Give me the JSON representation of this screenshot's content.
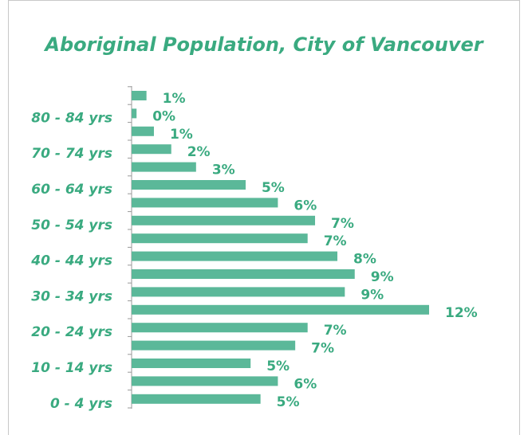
{
  "chart_data": {
    "type": "barh",
    "title": "Aboriginal Population, City of Vancouver",
    "categories": [
      "0 - 4 yrs",
      null,
      "10 - 14 yrs",
      null,
      "20 - 24 yrs",
      null,
      "30 - 34 yrs",
      null,
      "40 - 44 yrs",
      null,
      "50 - 54 yrs",
      null,
      "60 - 64 yrs",
      null,
      "70 - 74 yrs",
      null,
      "80 - 84 yrs",
      null
    ],
    "values": [
      5.2,
      5.9,
      4.8,
      6.6,
      7.1,
      12.0,
      8.6,
      9.0,
      8.3,
      7.1,
      7.4,
      5.9,
      4.6,
      2.6,
      1.6,
      0.9,
      0.2,
      0.6
    ],
    "value_labels": [
      "5%",
      "6%",
      "5%",
      "7%",
      "7%",
      "12%",
      "9%",
      "9%",
      "8%",
      "7%",
      "7%",
      "6%",
      "5%",
      "3%",
      "2%",
      "1%",
      "0%",
      "1%"
    ],
    "color": "#5bb899",
    "xlim": [
      0,
      12
    ]
  }
}
